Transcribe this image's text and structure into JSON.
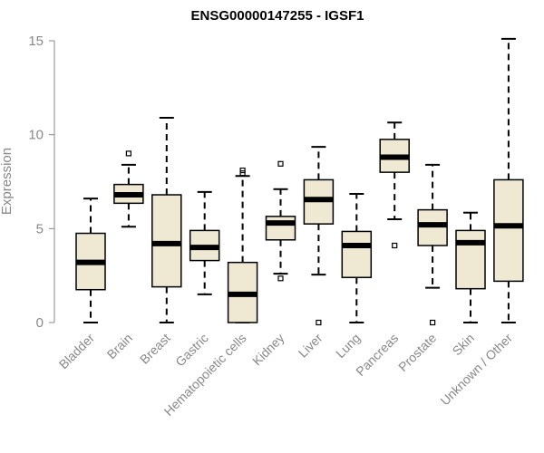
{
  "chart_data": {
    "type": "boxplot",
    "title": "ENSG00000147255 - IGSF1",
    "xlabel": "",
    "ylabel": "Expression",
    "ylim": [
      0,
      15
    ],
    "yticks": [
      0,
      5,
      10,
      15
    ],
    "box_fill": "#efe8d2",
    "categories": [
      "Bladder",
      "Brain",
      "Breast",
      "Gastric",
      "Hematopoietic cells",
      "Kidney",
      "Liver",
      "Lung",
      "Pancreas",
      "Prostate",
      "Skin",
      "Unknown / Other"
    ],
    "boxes": [
      {
        "name": "Bladder",
        "min": 0.0,
        "q1": 1.75,
        "median": 3.2,
        "q3": 4.75,
        "max": 6.6,
        "outliers": []
      },
      {
        "name": "Brain",
        "min": 5.1,
        "q1": 6.35,
        "median": 6.8,
        "q3": 7.35,
        "max": 8.4,
        "outliers": [
          9.0
        ]
      },
      {
        "name": "Breast",
        "min": 0.0,
        "q1": 1.9,
        "median": 4.2,
        "q3": 6.8,
        "max": 10.9,
        "outliers": []
      },
      {
        "name": "Gastric",
        "min": 1.5,
        "q1": 3.3,
        "median": 4.0,
        "q3": 4.9,
        "max": 6.95,
        "outliers": []
      },
      {
        "name": "Hematopoietic cells",
        "min": 0.0,
        "q1": 0.0,
        "median": 1.5,
        "q3": 3.2,
        "max": 7.8,
        "outliers": [
          7.95,
          8.1
        ]
      },
      {
        "name": "Kidney",
        "min": 2.6,
        "q1": 4.4,
        "median": 5.3,
        "q3": 5.65,
        "max": 7.1,
        "outliers": [
          2.35,
          8.45
        ]
      },
      {
        "name": "Liver",
        "min": 2.55,
        "q1": 5.25,
        "median": 6.55,
        "q3": 7.6,
        "max": 9.35,
        "outliers": [
          0.0
        ]
      },
      {
        "name": "Lung",
        "min": 0.0,
        "q1": 2.4,
        "median": 4.1,
        "q3": 4.85,
        "max": 6.85,
        "outliers": []
      },
      {
        "name": "Pancreas",
        "min": 5.5,
        "q1": 8.0,
        "median": 8.8,
        "q3": 9.75,
        "max": 10.65,
        "outliers": [
          4.1
        ]
      },
      {
        "name": "Prostate",
        "min": 1.85,
        "q1": 4.1,
        "median": 5.2,
        "q3": 6.0,
        "max": 8.4,
        "outliers": [
          0.0
        ]
      },
      {
        "name": "Skin",
        "min": 0.0,
        "q1": 1.8,
        "median": 4.25,
        "q3": 4.9,
        "max": 5.85,
        "outliers": []
      },
      {
        "name": "Unknown / Other",
        "min": 0.0,
        "q1": 2.2,
        "median": 5.15,
        "q3": 7.6,
        "max": 15.1,
        "outliers": []
      }
    ]
  }
}
